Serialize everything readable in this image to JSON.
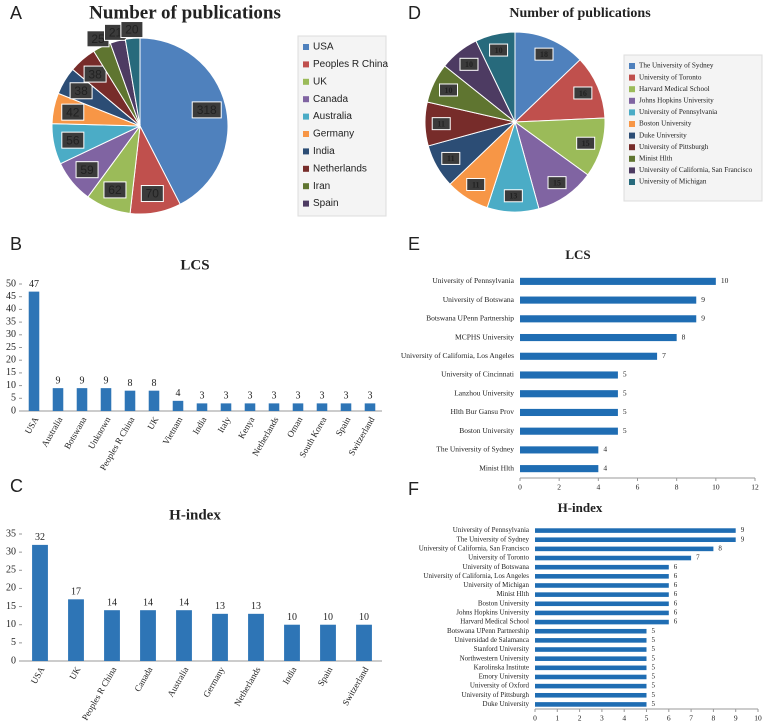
{
  "chart_data": [
    {
      "type": "pie",
      "panel": "A",
      "title": "Number of publications",
      "categories": [
        "USA",
        "Peoples R China",
        "UK",
        "Canada",
        "Australia",
        "Germany",
        "India",
        "Netherlands",
        "Iran",
        "Spain",
        null
      ],
      "values": [
        318,
        70,
        62,
        59,
        56,
        42,
        38,
        38,
        25,
        21,
        20
      ],
      "colors": [
        "#4f81bd",
        "#c0504d",
        "#9bbb59",
        "#8064a2",
        "#4bacc6",
        "#f79646",
        "#2c4d75",
        "#772c2a",
        "#5f7530",
        "#4d3b62",
        "#276a7c"
      ]
    },
    {
      "type": "bar",
      "panel": "B",
      "title": "LCS",
      "categories": [
        "USA",
        "Australia",
        "Botswana",
        "Unknown",
        "Peoples R China",
        "UK",
        "Vietnam",
        "India",
        "Italy",
        "Kenya",
        "Netherlands",
        "Oman",
        "South Korea",
        "Spain",
        "Switzerland"
      ],
      "values": [
        47,
        9,
        9,
        9,
        8,
        8,
        4,
        3,
        3,
        3,
        3,
        3,
        3,
        3,
        3
      ],
      "color": "#2e75b6",
      "ylim": [
        0,
        50
      ],
      "yticks": [
        0,
        5,
        10,
        15,
        20,
        25,
        30,
        35,
        40,
        45,
        50
      ]
    },
    {
      "type": "bar",
      "panel": "C",
      "title": "H-index",
      "categories": [
        "USA",
        "UK",
        "Peoples R China",
        "Canada",
        "Australia",
        "Germany",
        "Netherlands",
        "India",
        "Spain",
        "Switzerland"
      ],
      "values": [
        32,
        17,
        14,
        14,
        14,
        13,
        13,
        10,
        10,
        10
      ],
      "color": "#2e75b6",
      "ylim": [
        0,
        35
      ],
      "yticks": [
        0,
        5,
        10,
        15,
        20,
        25,
        30,
        35
      ]
    },
    {
      "type": "pie",
      "panel": "D",
      "title": "Number of publications",
      "categories": [
        "The University of Sydney",
        "University of Toronto",
        "Harvard Medical School",
        "Johns Hopkins University",
        "University of Pennsylvania",
        "Boston University",
        "Duke University",
        "University of Pittsburgh",
        "Minist Hlth",
        "University of California, San Francisco",
        "University of Michigan"
      ],
      "values": [
        18,
        16,
        15,
        15,
        13,
        11,
        11,
        11,
        10,
        10,
        10
      ],
      "colors": [
        "#4f81bd",
        "#c0504d",
        "#9bbb59",
        "#8064a2",
        "#4bacc6",
        "#f79646",
        "#2c4d75",
        "#772c2a",
        "#5f7530",
        "#4d3b62",
        "#276a7c"
      ]
    },
    {
      "type": "hbar",
      "panel": "E",
      "title": "LCS",
      "categories": [
        "University of Pennsylvania",
        "University of Botswana",
        "Botswana UPenn Partnership",
        "MCPHS University",
        "University of California, Los Angeles",
        "University of Cincinnati",
        "Lanzhou University",
        "Hlth Bur Gansu Prov",
        "Boston University",
        "The University of Sydney",
        "Minist Hlth"
      ],
      "values": [
        10,
        9,
        9,
        8,
        7,
        5,
        5,
        5,
        5,
        4,
        4
      ],
      "color": "#1f6db3",
      "xlim": [
        0,
        12
      ],
      "xticks": [
        0,
        2,
        4,
        6,
        8,
        10,
        12
      ]
    },
    {
      "type": "hbar",
      "panel": "F",
      "title": "H-index",
      "categories": [
        "University of Pennsylvania",
        "The University of Sydney",
        "University of California, San Francisco",
        "University of Toronto",
        "University of Botswana",
        "University of California, Los Angeles",
        "University of Michigan",
        "Minist Hlth",
        "Boston University",
        "Johns Hopkins University",
        "Harvard Medical School",
        "Botswana UPenn Partnership",
        "Universidad de Salamanca",
        "Stanford University",
        "Northwestern University",
        "Karolinska Institute",
        "Emory University",
        "University of Oxford",
        "University of Pittsburgh",
        "Duke University"
      ],
      "values": [
        9,
        9,
        8,
        7,
        6,
        6,
        6,
        6,
        6,
        6,
        6,
        5,
        5,
        5,
        5,
        5,
        5,
        5,
        5,
        5
      ],
      "color": "#1f6db3",
      "xlim": [
        0,
        10
      ],
      "xticks": [
        0,
        1,
        2,
        3,
        4,
        5,
        6,
        7,
        8,
        9,
        10
      ]
    }
  ]
}
